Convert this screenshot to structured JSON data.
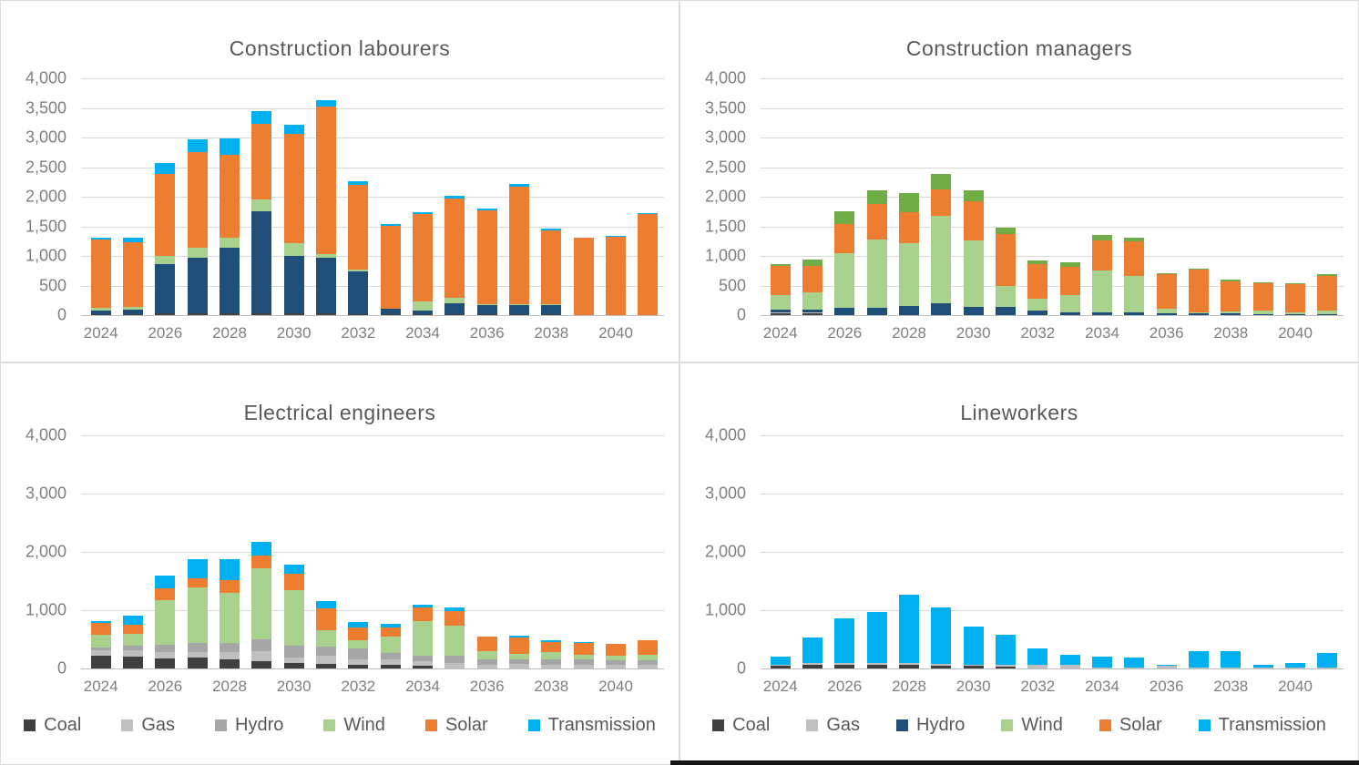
{
  "page": {
    "background": "#ffffff",
    "border_color": "#c9c9c9",
    "gridline_color": "#d9d9d9",
    "title_color": "#595959",
    "tick_label_color": "#7f7f7f"
  },
  "chart_data": [
    {
      "type": "bar",
      "stacked": true,
      "title": "Construction labourers",
      "x": [
        2024,
        2025,
        2026,
        2027,
        2028,
        2029,
        2030,
        2031,
        2032,
        2033,
        2034,
        2035,
        2036,
        2037,
        2038,
        2039,
        2040,
        2041
      ],
      "x_tick_labels": [
        "2024",
        "2026",
        "2028",
        "2030",
        "2032",
        "2034",
        "2036",
        "2038",
        "2040"
      ],
      "ylim": [
        0,
        4000
      ],
      "y_tick_step": 500,
      "grid": true,
      "legend_position": "none",
      "series": [
        {
          "name": "Coal",
          "color": "#404040",
          "values": [
            20,
            20,
            25,
            25,
            25,
            25,
            25,
            25,
            20,
            15,
            10,
            10,
            10,
            10,
            10,
            0,
            0,
            0
          ]
        },
        {
          "name": "Gas",
          "color": "#bfbfbf",
          "values": [
            0,
            0,
            0,
            0,
            0,
            0,
            0,
            0,
            0,
            0,
            0,
            0,
            0,
            0,
            0,
            0,
            0,
            0
          ]
        },
        {
          "name": "Hydro",
          "color": "#1f4e79",
          "values": [
            55,
            65,
            830,
            940,
            1120,
            1735,
            975,
            950,
            725,
            90,
            60,
            185,
            160,
            160,
            165,
            0,
            0,
            0
          ]
        },
        {
          "name": "Wind",
          "color": "#a9d18e",
          "values": [
            45,
            50,
            145,
            175,
            165,
            200,
            220,
            60,
            25,
            10,
            165,
            100,
            15,
            15,
            15,
            0,
            0,
            0
          ]
        },
        {
          "name": "Solar",
          "color": "#ed7d31",
          "values": [
            1160,
            1090,
            1390,
            1620,
            1400,
            1270,
            1840,
            2490,
            1430,
            1395,
            1470,
            1670,
            1590,
            1990,
            1240,
            1300,
            1330,
            1700
          ]
        },
        {
          "name": "Transmission",
          "color": "#00b0f0",
          "values": [
            30,
            90,
            180,
            210,
            270,
            220,
            150,
            110,
            60,
            30,
            40,
            50,
            20,
            40,
            30,
            10,
            10,
            30
          ]
        }
      ]
    },
    {
      "type": "bar",
      "stacked": true,
      "title": "Construction managers",
      "x": [
        2024,
        2025,
        2026,
        2027,
        2028,
        2029,
        2030,
        2031,
        2032,
        2033,
        2034,
        2035,
        2036,
        2037,
        2038,
        2039,
        2040,
        2041
      ],
      "x_tick_labels": [
        "2024",
        "2026",
        "2028",
        "2030",
        "2032",
        "2034",
        "2036",
        "2038",
        "2040"
      ],
      "ylim": [
        0,
        4000
      ],
      "y_tick_step": 500,
      "grid": true,
      "legend_position": "none",
      "series": [
        {
          "name": "Coal",
          "color": "#404040",
          "values": [
            25,
            25,
            0,
            0,
            0,
            0,
            0,
            0,
            0,
            0,
            0,
            0,
            0,
            0,
            0,
            0,
            0,
            0
          ]
        },
        {
          "name": "Gas",
          "color": "#bfbfbf",
          "values": [
            20,
            20,
            0,
            0,
            0,
            0,
            0,
            0,
            0,
            0,
            0,
            0,
            0,
            0,
            0,
            0,
            0,
            0
          ]
        },
        {
          "name": "Hydro",
          "color": "#1f4e79",
          "values": [
            50,
            50,
            130,
            130,
            150,
            200,
            140,
            140,
            80,
            45,
            45,
            50,
            25,
            25,
            25,
            20,
            20,
            20
          ]
        },
        {
          "name": "Wind",
          "color": "#a9d18e",
          "values": [
            240,
            290,
            910,
            1140,
            1070,
            1470,
            1120,
            360,
            205,
            290,
            710,
            615,
            90,
            25,
            35,
            55,
            20,
            55
          ]
        },
        {
          "name": "Solar",
          "color": "#ed7d31",
          "values": [
            500,
            450,
            500,
            600,
            520,
            460,
            660,
            870,
            580,
            480,
            510,
            585,
            585,
            720,
            505,
            465,
            485,
            585
          ]
        },
        {
          "name": "Transmission",
          "color": "#70ad47",
          "values": [
            30,
            110,
            210,
            240,
            320,
            250,
            190,
            100,
            60,
            75,
            90,
            65,
            15,
            20,
            30,
            20,
            15,
            30
          ]
        }
      ]
    },
    {
      "type": "bar",
      "stacked": true,
      "title": "Electrical engineers",
      "x": [
        2024,
        2025,
        2026,
        2027,
        2028,
        2029,
        2030,
        2031,
        2032,
        2033,
        2034,
        2035,
        2036,
        2037,
        2038,
        2039,
        2040,
        2041
      ],
      "x_tick_labels": [
        "2024",
        "2026",
        "2028",
        "2030",
        "2032",
        "2034",
        "2036",
        "2038",
        "2040"
      ],
      "ylim": [
        0,
        4000
      ],
      "y_tick_step": 1000,
      "grid": true,
      "legend_position": "bottom",
      "series": [
        {
          "name": "Coal",
          "color": "#404040",
          "values": [
            220,
            200,
            175,
            180,
            160,
            120,
            100,
            80,
            60,
            60,
            40,
            0,
            0,
            0,
            0,
            0,
            0,
            0
          ]
        },
        {
          "name": "Gas",
          "color": "#bfbfbf",
          "values": [
            100,
            115,
            105,
            100,
            120,
            180,
            80,
            140,
            100,
            90,
            90,
            90,
            70,
            80,
            70,
            70,
            60,
            60
          ]
        },
        {
          "name": "Hydro",
          "color": "#a6a6a6",
          "values": [
            40,
            70,
            130,
            160,
            160,
            200,
            210,
            150,
            180,
            110,
            90,
            130,
            90,
            80,
            90,
            80,
            80,
            80
          ]
        },
        {
          "name": "Wind",
          "color": "#a9d18e",
          "values": [
            220,
            210,
            755,
            950,
            860,
            1220,
            960,
            290,
            150,
            280,
            600,
            520,
            130,
            90,
            120,
            90,
            80,
            100
          ]
        },
        {
          "name": "Solar",
          "color": "#ed7d31",
          "values": [
            200,
            155,
            215,
            160,
            220,
            210,
            270,
            370,
            210,
            160,
            230,
            240,
            250,
            280,
            170,
            200,
            200,
            240
          ]
        },
        {
          "name": "Transmission",
          "color": "#00b0f0",
          "values": [
            40,
            155,
            220,
            320,
            350,
            240,
            160,
            120,
            100,
            60,
            50,
            60,
            10,
            30,
            30,
            15,
            10,
            10
          ]
        }
      ]
    },
    {
      "type": "bar",
      "stacked": true,
      "title": "Lineworkers",
      "x": [
        2024,
        2025,
        2026,
        2027,
        2028,
        2029,
        2030,
        2031,
        2032,
        2033,
        2034,
        2035,
        2036,
        2037,
        2038,
        2039,
        2040,
        2041
      ],
      "x_tick_labels": [
        "2024",
        "2026",
        "2028",
        "2030",
        "2032",
        "2034",
        "2036",
        "2038",
        "2040"
      ],
      "ylim": [
        0,
        4000
      ],
      "y_tick_step": 1000,
      "grid": true,
      "legend_position": "bottom",
      "series": [
        {
          "name": "Coal",
          "color": "#404040",
          "values": [
            50,
            70,
            70,
            70,
            60,
            50,
            40,
            30,
            0,
            0,
            0,
            0,
            0,
            0,
            0,
            0,
            0,
            0
          ]
        },
        {
          "name": "Gas",
          "color": "#bfbfbf",
          "values": [
            20,
            20,
            30,
            30,
            30,
            30,
            30,
            30,
            60,
            60,
            20,
            20,
            40,
            10,
            10,
            10,
            10,
            10
          ]
        },
        {
          "name": "Hydro",
          "color": "#1f4e79",
          "values": [
            0,
            0,
            0,
            0,
            0,
            0,
            0,
            0,
            0,
            0,
            0,
            0,
            0,
            0,
            0,
            0,
            0,
            0
          ]
        },
        {
          "name": "Wind",
          "color": "#a9d18e",
          "values": [
            0,
            0,
            0,
            0,
            0,
            0,
            0,
            0,
            0,
            0,
            0,
            0,
            0,
            0,
            0,
            0,
            0,
            0
          ]
        },
        {
          "name": "Solar",
          "color": "#ed7d31",
          "values": [
            0,
            0,
            0,
            0,
            0,
            0,
            0,
            0,
            0,
            0,
            0,
            0,
            0,
            0,
            0,
            0,
            0,
            0
          ]
        },
        {
          "name": "Transmission",
          "color": "#00b0f0",
          "values": [
            130,
            440,
            760,
            870,
            1170,
            970,
            650,
            520,
            280,
            170,
            190,
            175,
            30,
            280,
            280,
            50,
            90,
            260
          ]
        }
      ]
    }
  ]
}
